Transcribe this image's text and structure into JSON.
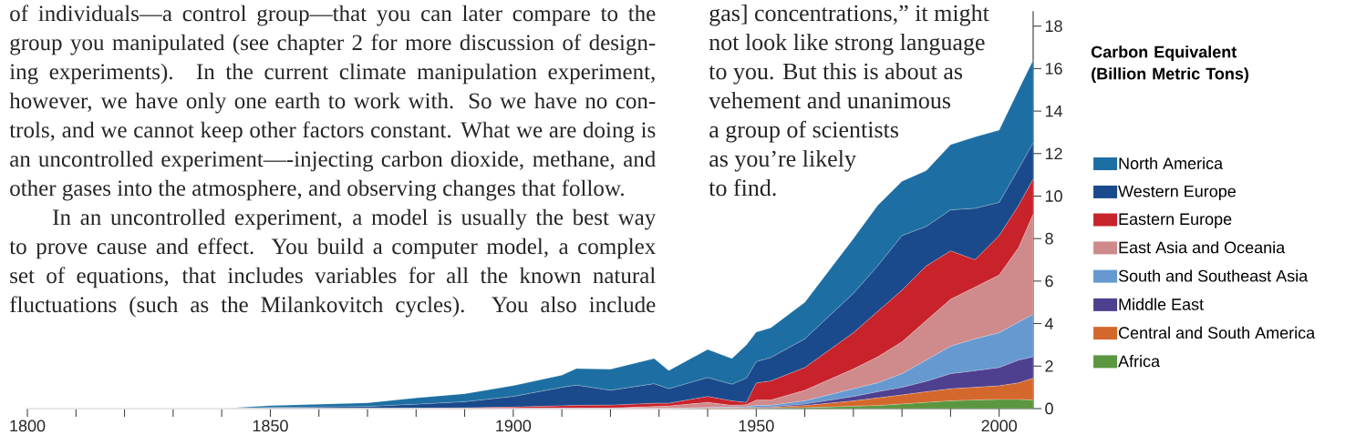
{
  "chart_data": {
    "type": "area",
    "stacked": true,
    "legend_title": "Carbon Equivalent (Billion Metric Tons)",
    "x": [
      1800,
      1840,
      1850,
      1870,
      1880,
      1890,
      1900,
      1910,
      1913,
      1920,
      1929,
      1932,
      1940,
      1945,
      1948,
      1950,
      1953,
      1960,
      1970,
      1975,
      1980,
      1985,
      1990,
      1995,
      2000,
      2004,
      2007
    ],
    "series": [
      {
        "name": "Africa",
        "color": "#5b9640",
        "values": [
          0,
          0,
          0,
          0,
          0,
          0,
          0,
          0,
          0,
          0,
          0,
          0,
          0,
          0,
          0,
          0.01,
          0.02,
          0.04,
          0.11,
          0.14,
          0.21,
          0.29,
          0.36,
          0.4,
          0.43,
          0.43,
          0.4
        ]
      },
      {
        "name": "Central and South America",
        "color": "#d4682c",
        "values": [
          0,
          0,
          0,
          0,
          0,
          0,
          0,
          0,
          0,
          0,
          0,
          0,
          0.02,
          0.02,
          0.03,
          0.02,
          0.03,
          0.1,
          0.25,
          0.36,
          0.43,
          0.5,
          0.57,
          0.6,
          0.64,
          0.78,
          1.03
        ]
      },
      {
        "name": "Middle East",
        "color": "#4e3f8f",
        "values": [
          0,
          0,
          0,
          0,
          0,
          0,
          0,
          0,
          0,
          0,
          0,
          0,
          0,
          0.01,
          0.01,
          0.03,
          0.03,
          0.07,
          0.21,
          0.29,
          0.36,
          0.49,
          0.71,
          0.78,
          0.86,
          1.07,
          1.0
        ]
      },
      {
        "name": "South and Southeast Asia",
        "color": "#6699d0",
        "values": [
          0,
          0,
          0,
          0,
          0,
          0,
          0,
          0,
          0,
          0,
          0,
          0,
          0.03,
          0.03,
          0.04,
          0.08,
          0.08,
          0.15,
          0.36,
          0.42,
          0.64,
          1.0,
          1.29,
          1.5,
          1.64,
          1.79,
          2.0
        ]
      },
      {
        "name": "East Asia and Oceania",
        "color": "#cf8a8c",
        "values": [
          0,
          0,
          0,
          0,
          0,
          0,
          0,
          0.01,
          0.01,
          0.02,
          0.1,
          0.12,
          0.24,
          0.09,
          0.1,
          0.26,
          0.24,
          0.5,
          0.93,
          1.22,
          1.5,
          1.86,
          2.21,
          2.43,
          2.71,
          3.5,
          4.71
        ]
      },
      {
        "name": "Eastern Europe",
        "color": "#c8222b",
        "values": [
          0,
          0,
          0,
          0,
          0.01,
          0.03,
          0.07,
          0.12,
          0.14,
          0.14,
          0.15,
          0.13,
          0.28,
          0.21,
          0.11,
          0.8,
          0.9,
          1.07,
          1.71,
          2.14,
          2.43,
          2.57,
          2.28,
          1.29,
          1.86,
          1.99,
          1.66
        ]
      },
      {
        "name": "Western Europe",
        "color": "#1a4a8c",
        "values": [
          0,
          0,
          0.05,
          0.1,
          0.19,
          0.29,
          0.5,
          0.87,
          0.95,
          0.7,
          0.92,
          0.68,
          0.89,
          0.78,
          1.14,
          1.0,
          1.1,
          1.35,
          1.85,
          2.14,
          2.57,
          1.86,
          1.93,
          2.42,
          1.56,
          1.72,
          1.7
        ]
      },
      {
        "name": "North America",
        "color": "#1d6fa3",
        "values": [
          0,
          0,
          0.09,
          0.17,
          0.3,
          0.38,
          0.51,
          0.57,
          0.78,
          0.99,
          1.19,
          0.86,
          1.32,
          1.22,
          1.57,
          1.4,
          1.4,
          1.72,
          2.58,
          2.85,
          2.56,
          2.63,
          3.07,
          3.36,
          3.4,
          3.72,
          3.9
        ]
      }
    ],
    "xlim": [
      1800,
      2007
    ],
    "xticks": [
      1800,
      {
        "value": 1810,
        "label": null
      },
      {
        "value": 1820,
        "label": null
      },
      {
        "value": 1830,
        "label": null
      },
      {
        "value": 1840,
        "label": null
      },
      1850,
      {
        "value": 1860,
        "label": null
      },
      {
        "value": 1870,
        "label": null
      },
      {
        "value": 1880,
        "label": null
      },
      {
        "value": 1890,
        "label": null
      },
      1900,
      {
        "value": 1910,
        "label": null
      },
      {
        "value": 1920,
        "label": null
      },
      {
        "value": 1930,
        "label": null
      },
      {
        "value": 1940,
        "label": null
      },
      1950,
      {
        "value": 1960,
        "label": null
      },
      {
        "value": 1970,
        "label": null
      },
      {
        "value": 1980,
        "label": null
      },
      {
        "value": 1990,
        "label": null
      },
      2000
    ],
    "ylim": [
      0,
      18.7
    ],
    "yticks": [
      0,
      2,
      4,
      6,
      8,
      10,
      12,
      14,
      16,
      18
    ],
    "legend": "right",
    "annotations": [
      "of individuals—a control group—that you can later compare to the",
      "group you manipulated (see chapter 2 for more discussion of design-",
      "ing experiments). In the current climate manipulation experiment,",
      "however, we have only one earth to work with. So we have no con-",
      "trols, and we cannot keep other factors constant. What we are doing is",
      "an uncontrolled experiment—-injecting carbon dioxide, methane, and",
      "other gases into the atmosphere, and observing changes that follow.",
      "In an uncontrolled experiment, a model is usually the best way",
      "to prove cause and effect. You build a computer model, a complex",
      "set of equations, that includes variables for all the known natural",
      "fluctuations (such as the Milankovitch cycles). You also include",
      "gas] concentrations,” it might",
      "not look like strong language",
      "to you. But this is about as",
      "vehement and unanimous",
      "a group of scientists",
      "as you’re likely",
      "to find."
    ]
  }
}
